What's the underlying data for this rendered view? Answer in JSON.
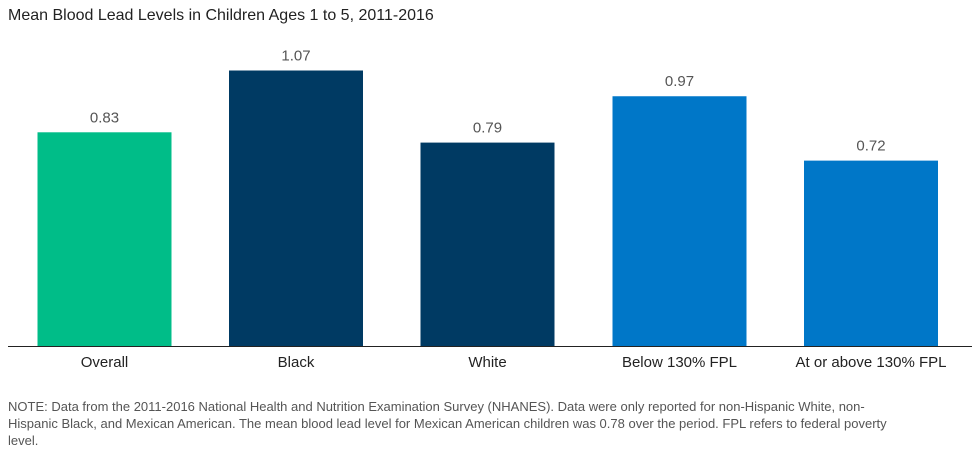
{
  "chart_data": {
    "type": "bar",
    "title": "Mean Blood Lead Levels in Children Ages 1 to 5, 2011-2016",
    "categories": [
      "Overall",
      "Black",
      "White",
      "Below 130% FPL",
      "At or above 130% FPL"
    ],
    "values": [
      0.83,
      1.07,
      0.79,
      0.97,
      0.72
    ],
    "value_labels": [
      "0.83",
      "1.07",
      "0.79",
      "0.97",
      "0.72"
    ],
    "colors": [
      "#00bd88",
      "#003a63",
      "#003a63",
      "#0077c8",
      "#0077c8"
    ],
    "ylim": [
      0,
      1.2
    ],
    "grid": false,
    "xlabel": "",
    "ylabel": ""
  },
  "note": "NOTE: Data from the 2011-2016 National Health and Nutrition Examination Survey (NHANES). Data were only reported for non-Hispanic White, non-Hispanic Black, and Mexican American. The mean blood lead level for Mexican American children was 0.78 over the period. FPL refers to federal poverty level.",
  "colors": {
    "axis": "#222222",
    "label_text": "#555555",
    "category_text": "#222222"
  }
}
